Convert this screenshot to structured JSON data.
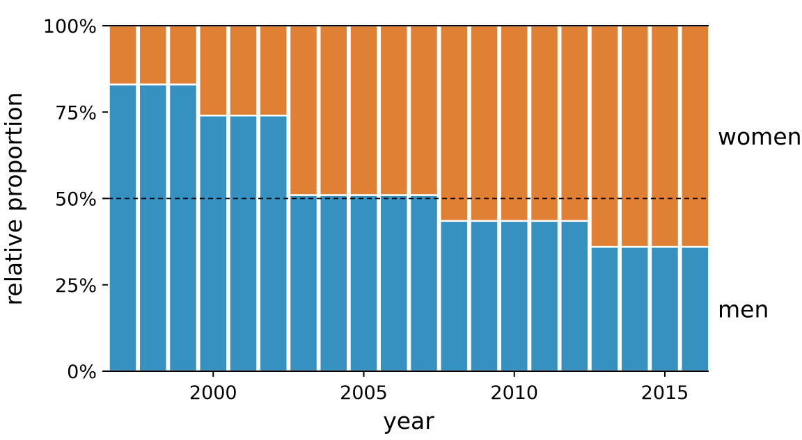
{
  "chart_data": {
    "type": "bar",
    "stacked": true,
    "normalized": true,
    "xlabel": "year",
    "ylabel": "relative proportion",
    "ylim": [
      0,
      1
    ],
    "yticks": [
      "0%",
      "25%",
      "50%",
      "75%",
      "100%"
    ],
    "xticks": [
      "2000",
      "2005",
      "2010",
      "2015"
    ],
    "x": [
      1997,
      1998,
      1999,
      2000,
      2001,
      2002,
      2003,
      2004,
      2005,
      2006,
      2007,
      2008,
      2009,
      2010,
      2011,
      2012,
      2013,
      2014,
      2015,
      2016
    ],
    "series": [
      {
        "name": "men",
        "color": "#3690c0",
        "values": [
          0.83,
          0.83,
          0.83,
          0.74,
          0.74,
          0.74,
          0.51,
          0.51,
          0.51,
          0.51,
          0.51,
          0.435,
          0.435,
          0.435,
          0.435,
          0.435,
          0.36,
          0.36,
          0.36,
          0.36
        ]
      },
      {
        "name": "women",
        "color": "#e08035",
        "values": [
          0.17,
          0.17,
          0.17,
          0.26,
          0.26,
          0.26,
          0.49,
          0.49,
          0.49,
          0.49,
          0.49,
          0.565,
          0.565,
          0.565,
          0.565,
          0.565,
          0.64,
          0.64,
          0.64,
          0.64
        ]
      }
    ],
    "reference_line": {
      "value": 0.5,
      "style": "dashed"
    },
    "grid": false,
    "legend": "direct labels at right"
  }
}
